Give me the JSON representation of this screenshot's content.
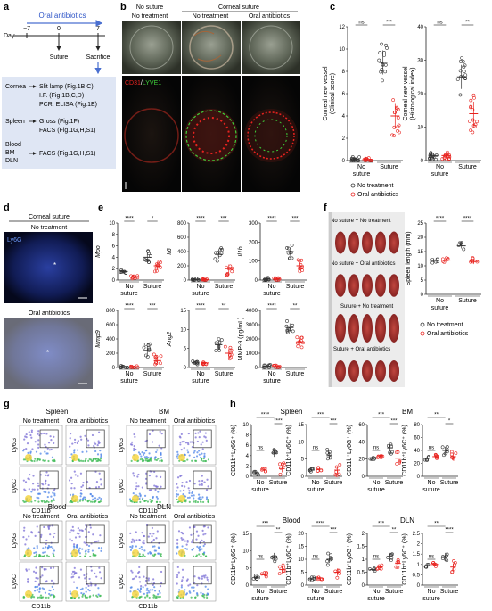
{
  "panel_letters": [
    "a",
    "b",
    "c",
    "d",
    "e",
    "f",
    "g",
    "h"
  ],
  "colors": {
    "no_treatment": "#333333",
    "oral_antibiotics": "#e8231f",
    "arrow_blue": "#4a6fd0",
    "box_fill": "#dfe6f4",
    "cd31": "#e8231f",
    "lyve1": "#3fcf3a"
  },
  "panel_a": {
    "oral_antibiotics": "Oral antibiotics",
    "day_prefix": "Day",
    "days": [
      "−7",
      "0",
      "7"
    ],
    "suture": "Suture",
    "sacrifice": "Sacrifice",
    "rows": [
      {
        "tissue": "Cornea",
        "assays": [
          "Slit lamp (Fig.1B,C)",
          "I.F. (Fig.1B,C,D)",
          "PCR, ELISA (Fig.1E)"
        ]
      },
      {
        "tissue": "Spleen",
        "assays": [
          "Gross (Fig.1F)",
          "FACS (Fig.1G,H,S1)"
        ]
      },
      {
        "tissue": "Blood\nBM\nDLN",
        "assays": [
          "FACS (Fig.1G,H,S1)"
        ]
      }
    ]
  },
  "panel_b": {
    "top_headers": [
      "No suture",
      "Corneal suture"
    ],
    "sub_headers": [
      "No treatment",
      "No treatment",
      "Oral antibiotics"
    ],
    "stain_a": "CD31",
    "stain_sep": "/",
    "stain_b": "LYVE1"
  },
  "panel_c": {
    "charts": [
      {
        "ylabel": "Corneal new vessel\n(Clinical score)",
        "yticks": [
          0,
          2,
          4,
          6,
          8,
          10,
          12
        ],
        "ylim": [
          0,
          12
        ],
        "groups": [
          "No suture",
          "Suture"
        ],
        "means": {
          "no_treatment": [
            0.1,
            8.8
          ],
          "oral_antibiotics": [
            0.1,
            4.0
          ]
        },
        "sig": [
          "ns",
          "***"
        ]
      },
      {
        "ylabel": "Corneal new vessel\n(Histological index)",
        "yticks": [
          0,
          10,
          20,
          30,
          40
        ],
        "ylim": [
          0,
          40
        ],
        "groups": [
          "No suture",
          "Suture"
        ],
        "means": {
          "no_treatment": [
            1.5,
            25
          ],
          "oral_antibiotics": [
            1.5,
            14
          ]
        },
        "sig": [
          "ns",
          "**"
        ]
      }
    ],
    "legend": [
      "No treatment",
      "Oral antibiotics"
    ]
  },
  "panel_d": {
    "header": "Corneal suture",
    "labels": [
      "No treatment",
      "Oral antibiotics"
    ],
    "stain": "Ly6G"
  },
  "panel_e": {
    "charts": [
      {
        "ylabel": "Mpo",
        "yticks": [
          0,
          2,
          4,
          6,
          8,
          10
        ],
        "sig": [
          "****",
          "*"
        ]
      },
      {
        "ylabel": "Il6",
        "yticks": [
          0,
          200,
          400,
          600,
          800
        ],
        "sig": [
          "****",
          "***"
        ]
      },
      {
        "ylabel": "Il1b",
        "yticks": [
          0,
          100,
          200,
          300
        ],
        "sig": [
          "****",
          "***"
        ]
      },
      {
        "ylabel": "Mmp9",
        "yticks": [
          0,
          200,
          400,
          600,
          800
        ],
        "sig": [
          "****",
          "***"
        ]
      },
      {
        "ylabel": "Ang2",
        "yticks": [
          0,
          5,
          10,
          15
        ],
        "sig": [
          "****",
          "**"
        ]
      },
      {
        "ylabel": "MMP-9 (pg/mL)",
        "yticks": [
          0,
          1000,
          2000,
          3000,
          4000
        ],
        "sig": [
          "****",
          "**"
        ]
      }
    ],
    "groups": [
      "No suture",
      "Suture"
    ]
  },
  "panel_f": {
    "photo_labels": [
      "No suture + No treatment",
      "No suture + Oral antibiotics",
      "Suture + No treatment",
      "Suture + Oral antibiotics"
    ],
    "chart": {
      "ylabel": "Spleen length (mm)",
      "yticks": [
        0,
        5,
        10,
        15,
        20,
        25
      ],
      "ylim": [
        0,
        25
      ],
      "groups": [
        "No suture",
        "Suture"
      ],
      "means": {
        "no_treatment": [
          12.0,
          17.0
        ],
        "oral_antibiotics": [
          12.0,
          11.5
        ]
      },
      "sig": [
        "****",
        "****"
      ]
    },
    "legend": [
      "No treatment",
      "Oral antibiotics"
    ]
  },
  "panel_g": {
    "blocks": [
      {
        "title": "Spleen",
        "cols": [
          "No treatment",
          "Oral antibiotics"
        ]
      },
      {
        "title": "BM",
        "cols": [
          "No treatment",
          "Oral antibiotics"
        ]
      },
      {
        "title": "Blood",
        "cols": [
          "No treatment",
          "Oral antibiotics"
        ]
      },
      {
        "title": "DLN",
        "cols": [
          "No treatment",
          "Oral antibiotics"
        ]
      }
    ],
    "xlabel": "CD11b",
    "ylabels": [
      "Ly6G",
      "Ly6C"
    ]
  },
  "panel_h": {
    "blocks": [
      {
        "title": "Spleen",
        "charts": [
          {
            "ylabel": "CD11b⁺Ly6G⁺ (%)",
            "yticks": [
              0,
              2,
              4,
              6,
              8,
              10
            ],
            "sig": [
              "ns",
              "****",
              "****"
            ]
          },
          {
            "ylabel": "CD11b⁺Ly6C⁺ (%)",
            "yticks": [
              0,
              5,
              10,
              15
            ],
            "sig": [
              "ns",
              "***",
              "***"
            ]
          }
        ]
      },
      {
        "title": "BM",
        "charts": [
          {
            "ylabel": "CD11b⁺Ly6G⁺ (%)",
            "yticks": [
              0,
              20,
              40,
              60
            ],
            "sig": [
              "ns",
              "***",
              "***"
            ]
          },
          {
            "ylabel": "CD11b⁺Ly6C⁺ (%)",
            "yticks": [
              0,
              20,
              40,
              60,
              80
            ],
            "sig": [
              "ns",
              "**",
              "*"
            ]
          }
        ]
      },
      {
        "title": "Blood",
        "charts": [
          {
            "ylabel": "CD11b⁺Ly6G⁺ (%)",
            "yticks": [
              0,
              5,
              10,
              15
            ],
            "sig": [
              "ns",
              "***",
              "**"
            ]
          },
          {
            "ylabel": "CD11b⁺Ly6C⁺ (%)",
            "yticks": [
              0,
              5,
              10,
              15,
              20
            ],
            "sig": [
              "ns",
              "****",
              "***"
            ]
          }
        ]
      },
      {
        "title": "DLN",
        "charts": [
          {
            "ylabel": "CD11b⁺Ly6G⁺ (%)",
            "yticks": [
              0,
              0.5,
              1.0,
              1.5,
              2.0
            ],
            "sig": [
              "ns",
              "***",
              "**"
            ]
          },
          {
            "ylabel": "CD11b⁺Ly6C⁺ (%)",
            "yticks": [
              0,
              0.5,
              1.0,
              1.5,
              2.0,
              2.5
            ],
            "sig": [
              "ns",
              "**",
              "****"
            ]
          }
        ]
      }
    ],
    "groups": [
      "No suture",
      "Suture"
    ]
  }
}
